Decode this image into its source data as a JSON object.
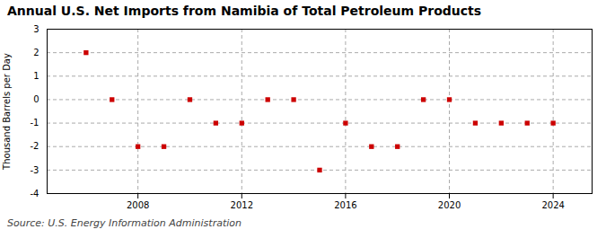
{
  "chart_data": {
    "type": "scatter",
    "title": "Annual U.S. Net Imports from Namibia of Total Petroleum Products",
    "ylabel": "Thousand Barrels per Day",
    "annotations": [
      "Source: U.S. Energy Information Administration"
    ],
    "x": [
      2006,
      2007,
      2008,
      2009,
      2010,
      2011,
      2012,
      2013,
      2014,
      2015,
      2016,
      2017,
      2018,
      2019,
      2020,
      2021,
      2022,
      2023,
      2024
    ],
    "values": [
      2,
      0,
      -2,
      -2,
      0,
      -1,
      -1,
      0,
      0,
      -3,
      -1,
      -2,
      -2,
      0,
      0,
      -1,
      -1,
      -1,
      -1
    ],
    "color": "#cc0000",
    "marker": "square",
    "xlim": [
      2004.5,
      2025.5
    ],
    "xticks": [
      2008,
      2012,
      2016,
      2020,
      2024
    ],
    "ylim": [
      -4,
      3
    ],
    "yticks": [
      -4,
      -3,
      -2,
      -1,
      0,
      1,
      2,
      3
    ],
    "grid": true
  }
}
